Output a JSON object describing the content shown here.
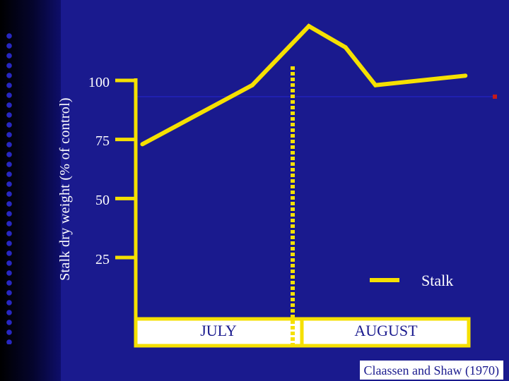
{
  "colors": {
    "background": "#1a1a8e",
    "accent": "#f5e000",
    "text": "#ffffff",
    "gridline": "#2020b0"
  },
  "citation": "Claassen and Shaw (1970)",
  "chart_data": {
    "type": "line",
    "ylabel": "Stalk dry weight (% of control)",
    "yticks": [
      25,
      50,
      75,
      100
    ],
    "ylim": [
      0,
      125
    ],
    "categories": [
      "JULY",
      "AUGUST"
    ],
    "divider_at": 0.5,
    "legend_placement": "bottom-right",
    "series": [
      {
        "name": "Stalk",
        "x": [
          0.02,
          0.35,
          0.52,
          0.63,
          0.72,
          0.99
        ],
        "y": [
          73,
          98,
          123,
          114,
          98,
          102
        ]
      }
    ]
  }
}
